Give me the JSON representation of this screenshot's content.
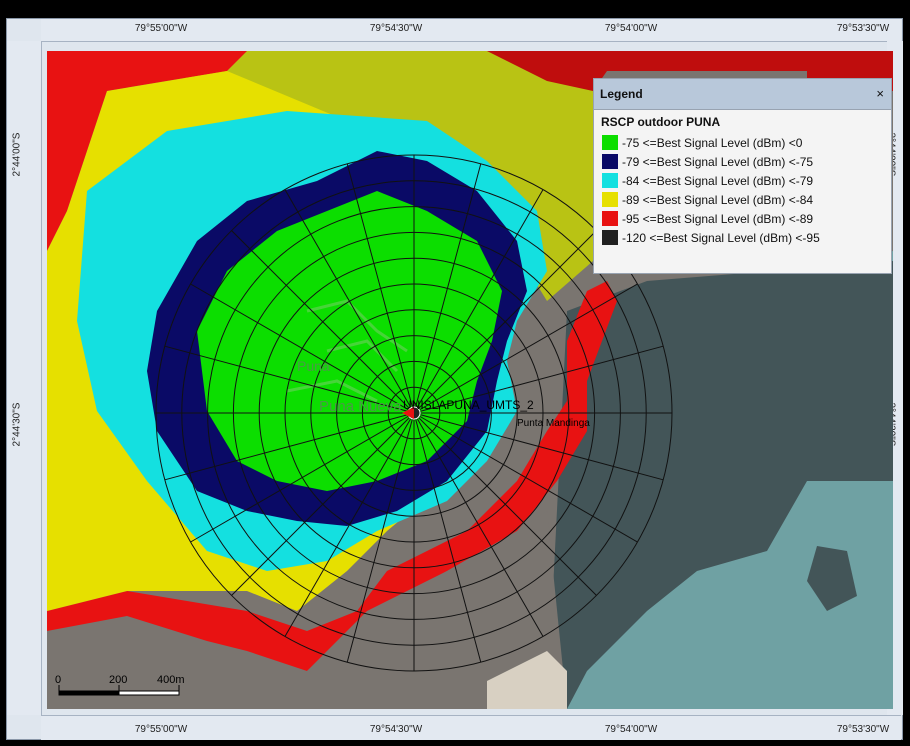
{
  "rulers": {
    "top_labels": [
      "79°55'00\"W",
      "79°54'30\"W",
      "79°54'00\"W",
      "79°53'30\"W"
    ],
    "bottom_labels": [
      "79°55'00\"W",
      "79°54'30\"W",
      "79°54'00\"W",
      "79°53'30\"W"
    ],
    "left_labels": [
      "2°44'00\"S",
      "2°44'30\"S"
    ],
    "right_labels": [
      "2°44'00\"S",
      "2°44'30\"S"
    ]
  },
  "map": {
    "site_label": "UNISLAPUNA_UMTS_2",
    "place_labels": {
      "puna": "Puna",
      "puna_nueva": "Puna Nueva",
      "punta": "Punta Mandinga"
    }
  },
  "scale_bar": {
    "labels": [
      "0",
      "200",
      "400m"
    ]
  },
  "legend": {
    "title": "Legend",
    "close_symbol": "×",
    "subtitle": "RSCP outdoor PUNA",
    "items": [
      {
        "label": "-75 <=Best Signal Level (dBm) <0",
        "color": "#0cde00"
      },
      {
        "label": "-79 <=Best Signal Level (dBm) <-75",
        "color": "#0a0a66"
      },
      {
        "label": "-84 <=Best Signal Level (dBm) <-79",
        "color": "#14e0e0"
      },
      {
        "label": "-89 <=Best Signal Level (dBm) <-84",
        "color": "#e6e000"
      },
      {
        "label": "-95 <=Best Signal Level (dBm) <-89",
        "color": "#e81212"
      },
      {
        "label": "-120 <=Best Signal Level (dBm) <-95",
        "color": "#202020"
      }
    ]
  },
  "colors": {
    "land": "#7a7570",
    "sea_dark": "#435558",
    "sea_light": "#6fa1a3",
    "olive": "#b9c314",
    "darkred": "#bf0d0d"
  }
}
